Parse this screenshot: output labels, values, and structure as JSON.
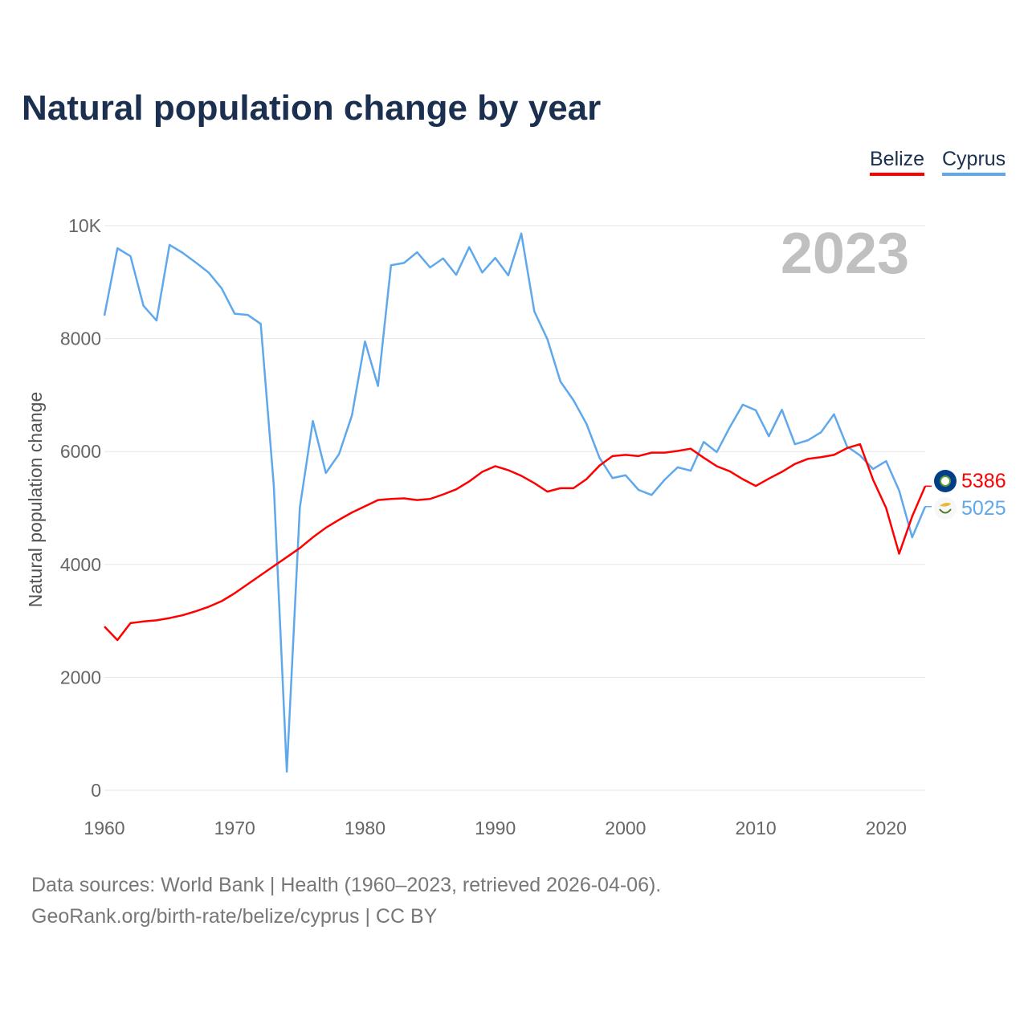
{
  "chart_data": {
    "type": "line",
    "title": "Natural population change by year",
    "ylabel": "Natural population change",
    "xlabel": "",
    "xlim": [
      1960,
      2023
    ],
    "ylim": [
      0,
      10000
    ],
    "x_ticks": [
      1960,
      1970,
      1980,
      1990,
      2000,
      2010,
      2020
    ],
    "x_tick_labels": [
      "1960",
      "1970",
      "1980",
      "1990",
      "2000",
      "2010",
      "2020"
    ],
    "y_ticks": [
      0,
      2000,
      4000,
      6000,
      8000,
      10000
    ],
    "y_tick_labels": [
      "0",
      "2000",
      "4000",
      "6000",
      "8000",
      "10K"
    ],
    "grid": true,
    "legend_placement": "top-right",
    "year_label": "2023",
    "series": [
      {
        "name": "Belize",
        "color": "#ff0000",
        "end_label": "5386",
        "values": [
          2900,
          2660,
          2960,
          2990,
          3010,
          3050,
          3100,
          3170,
          3250,
          3350,
          3490,
          3650,
          3810,
          3970,
          4130,
          4290,
          4480,
          4650,
          4790,
          4920,
          5030,
          5140,
          5160,
          5170,
          5140,
          5160,
          5240,
          5330,
          5470,
          5640,
          5740,
          5670,
          5570,
          5440,
          5290,
          5350,
          5350,
          5510,
          5750,
          5920,
          5940,
          5920,
          5980,
          5980,
          6010,
          6050,
          5890,
          5740,
          5650,
          5510,
          5390,
          5520,
          5640,
          5780,
          5870,
          5900,
          5940,
          6060,
          6130,
          5500,
          5000,
          4190,
          4850,
          5386
        ]
      },
      {
        "name": "Cyprus",
        "color": "#5fa8eb",
        "end_label": "5025",
        "values": [
          8407,
          9600,
          9460,
          8580,
          8320,
          9660,
          9520,
          9350,
          9170,
          8890,
          8440,
          8420,
          8260,
          5400,
          330,
          5010,
          6540,
          5620,
          5950,
          6640,
          7950,
          7160,
          9300,
          9340,
          9530,
          9260,
          9420,
          9130,
          9620,
          9170,
          9430,
          9120,
          9860,
          8480,
          7990,
          7240,
          6910,
          6490,
          5890,
          5530,
          5580,
          5320,
          5230,
          5500,
          5720,
          5660,
          6170,
          5990,
          6430,
          6830,
          6730,
          6270,
          6740,
          6130,
          6200,
          6340,
          6660,
          6090,
          5930,
          5690,
          5830,
          5310,
          4480,
          5025
        ]
      }
    ]
  },
  "footer": {
    "line1": "Data sources: World Bank | Health (1960–2023, retrieved 2026-04-06).",
    "line2": "GeoRank.org/birth-rate/belize/cyprus | CC BY"
  }
}
